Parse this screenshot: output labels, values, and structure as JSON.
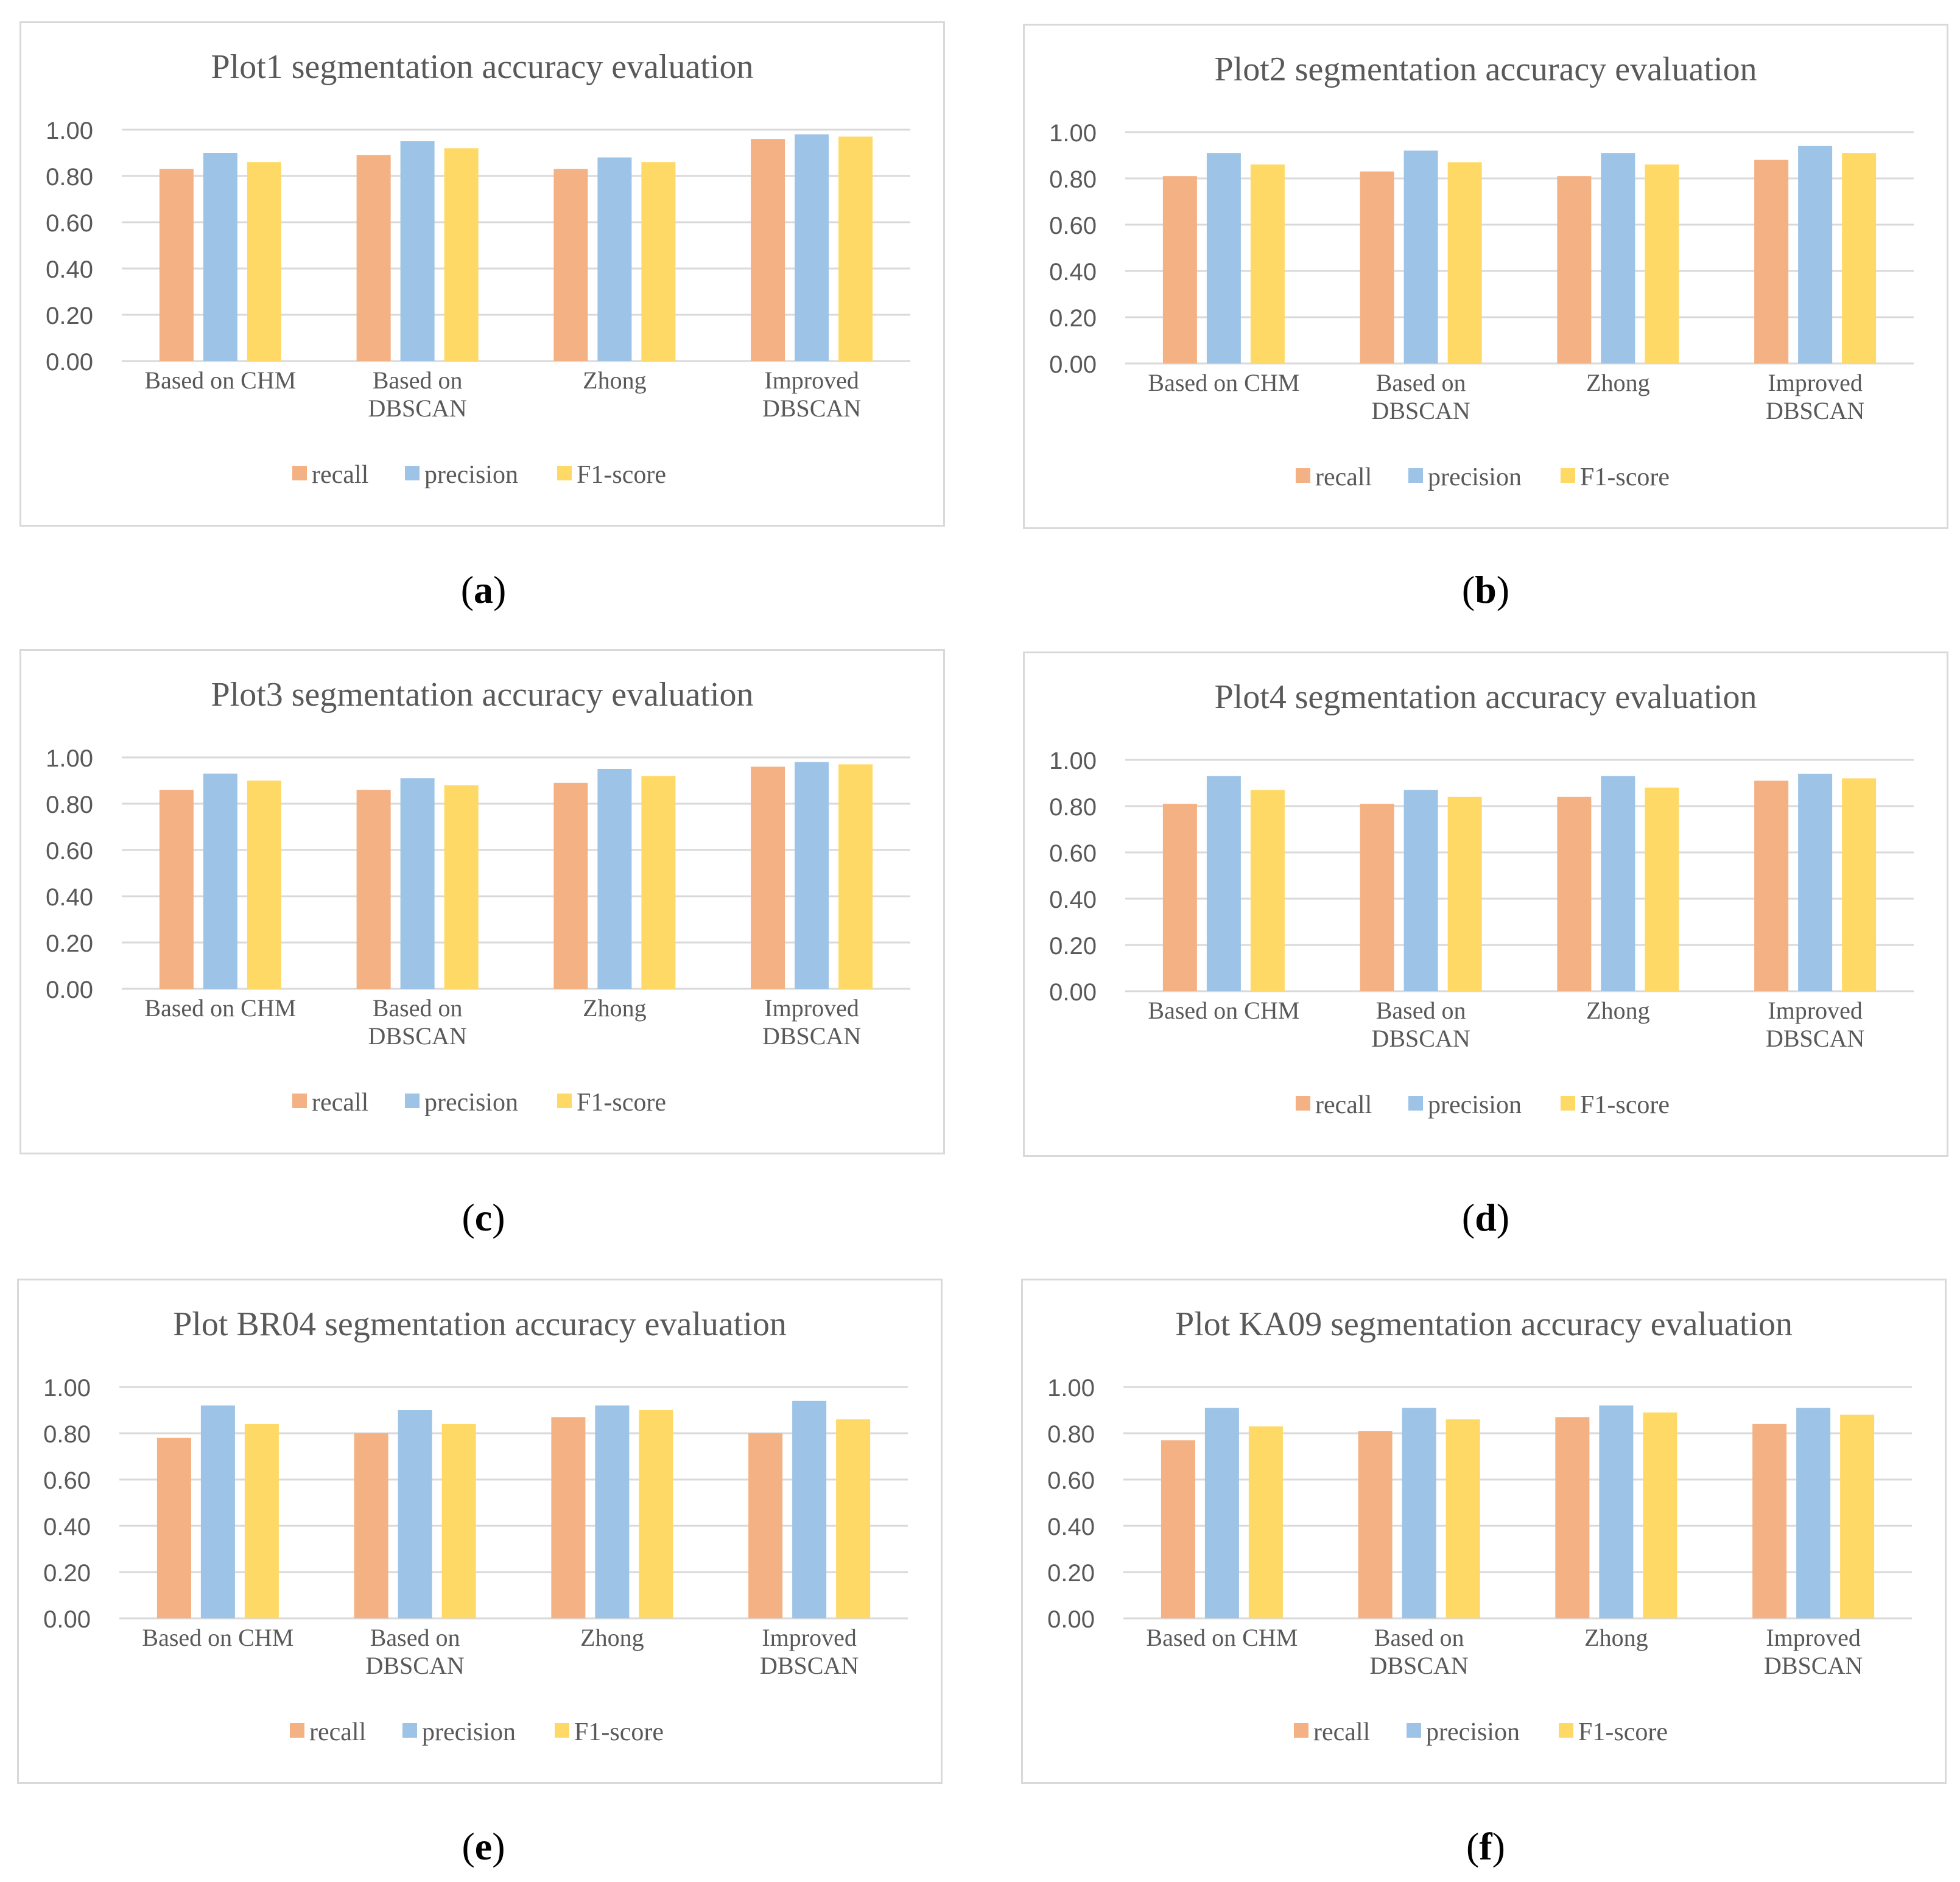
{
  "colors": {
    "recall": "#f4b183",
    "precision": "#9dc3e6",
    "f1": "#ffd966",
    "grid": "#d9d9d9",
    "text": "#595959"
  },
  "chart_data": [
    {
      "type": "bar",
      "panel_label": "a",
      "title": "Plot1 segmentation accuracy evaluation",
      "categories": [
        [
          "Based on CHM"
        ],
        [
          "Based on",
          "DBSCAN"
        ],
        [
          "Zhong"
        ],
        [
          "Improved",
          "DBSCAN"
        ]
      ],
      "series": [
        {
          "name": "recall",
          "values": [
            0.83,
            0.89,
            0.83,
            0.96
          ]
        },
        {
          "name": "precision",
          "values": [
            0.9,
            0.95,
            0.88,
            0.98
          ]
        },
        {
          "name": "F1-score",
          "values": [
            0.86,
            0.92,
            0.86,
            0.97
          ]
        }
      ],
      "yticks": [
        "0.00",
        "0.20",
        "0.40",
        "0.60",
        "0.80",
        "1.00"
      ],
      "ylim": [
        0,
        1
      ]
    },
    {
      "type": "bar",
      "panel_label": "b",
      "title": "Plot2 segmentation accuracy evaluation",
      "categories": [
        [
          "Based on CHM"
        ],
        [
          "Based on",
          "DBSCAN"
        ],
        [
          "Zhong"
        ],
        [
          "Improved",
          "DBSCAN"
        ]
      ],
      "series": [
        {
          "name": "recall",
          "values": [
            0.81,
            0.83,
            0.81,
            0.88
          ]
        },
        {
          "name": "precision",
          "values": [
            0.91,
            0.92,
            0.91,
            0.94
          ]
        },
        {
          "name": "F1-score",
          "values": [
            0.86,
            0.87,
            0.86,
            0.91
          ]
        }
      ],
      "yticks": [
        "0.00",
        "0.20",
        "0.40",
        "0.60",
        "0.80",
        "1.00"
      ],
      "ylim": [
        0,
        1
      ]
    },
    {
      "type": "bar",
      "panel_label": "c",
      "title": "Plot3 segmentation accuracy evaluation",
      "categories": [
        [
          "Based on CHM"
        ],
        [
          "Based on",
          "DBSCAN"
        ],
        [
          "Zhong"
        ],
        [
          "Improved",
          "DBSCAN"
        ]
      ],
      "series": [
        {
          "name": "recall",
          "values": [
            0.86,
            0.86,
            0.89,
            0.96
          ]
        },
        {
          "name": "precision",
          "values": [
            0.93,
            0.91,
            0.95,
            0.98
          ]
        },
        {
          "name": "F1-score",
          "values": [
            0.9,
            0.88,
            0.92,
            0.97
          ]
        }
      ],
      "yticks": [
        "0.00",
        "0.20",
        "0.40",
        "0.60",
        "0.80",
        "1.00"
      ],
      "ylim": [
        0,
        1
      ]
    },
    {
      "type": "bar",
      "panel_label": "d",
      "title": "Plot4 segmentation accuracy evaluation",
      "categories": [
        [
          "Based on CHM"
        ],
        [
          "Based on",
          "DBSCAN"
        ],
        [
          "Zhong"
        ],
        [
          "Improved",
          "DBSCAN"
        ]
      ],
      "series": [
        {
          "name": "recall",
          "values": [
            0.81,
            0.81,
            0.84,
            0.91
          ]
        },
        {
          "name": "precision",
          "values": [
            0.93,
            0.87,
            0.93,
            0.94
          ]
        },
        {
          "name": "F1-score",
          "values": [
            0.87,
            0.84,
            0.88,
            0.92
          ]
        }
      ],
      "yticks": [
        "0.00",
        "0.20",
        "0.40",
        "0.60",
        "0.80",
        "1.00"
      ],
      "ylim": [
        0,
        1
      ]
    },
    {
      "type": "bar",
      "panel_label": "e",
      "title": "Plot BR04 segmentation accuracy evaluation",
      "categories": [
        [
          "Based on CHM"
        ],
        [
          "Based on",
          "DBSCAN"
        ],
        [
          "Zhong"
        ],
        [
          "Improved",
          "DBSCAN"
        ]
      ],
      "series": [
        {
          "name": "recall",
          "values": [
            0.78,
            0.8,
            0.87,
            0.8
          ]
        },
        {
          "name": "precision",
          "values": [
            0.92,
            0.9,
            0.92,
            0.94
          ]
        },
        {
          "name": "F1-score",
          "values": [
            0.84,
            0.84,
            0.9,
            0.86
          ]
        }
      ],
      "yticks": [
        "0.00",
        "0.20",
        "0.40",
        "0.60",
        "0.80",
        "1.00"
      ],
      "ylim": [
        0,
        1
      ]
    },
    {
      "type": "bar",
      "panel_label": "f",
      "title": "Plot KA09 segmentation accuracy evaluation",
      "categories": [
        [
          "Based on CHM"
        ],
        [
          "Based on",
          "DBSCAN"
        ],
        [
          "Zhong"
        ],
        [
          "Improved",
          "DBSCAN"
        ]
      ],
      "series": [
        {
          "name": "recall",
          "values": [
            0.77,
            0.81,
            0.87,
            0.84
          ]
        },
        {
          "name": "precision",
          "values": [
            0.91,
            0.91,
            0.92,
            0.91
          ]
        },
        {
          "name": "F1-score",
          "values": [
            0.83,
            0.86,
            0.89,
            0.88
          ]
        }
      ],
      "yticks": [
        "0.00",
        "0.20",
        "0.40",
        "0.60",
        "0.80",
        "1.00"
      ],
      "ylim": [
        0,
        1
      ]
    }
  ]
}
